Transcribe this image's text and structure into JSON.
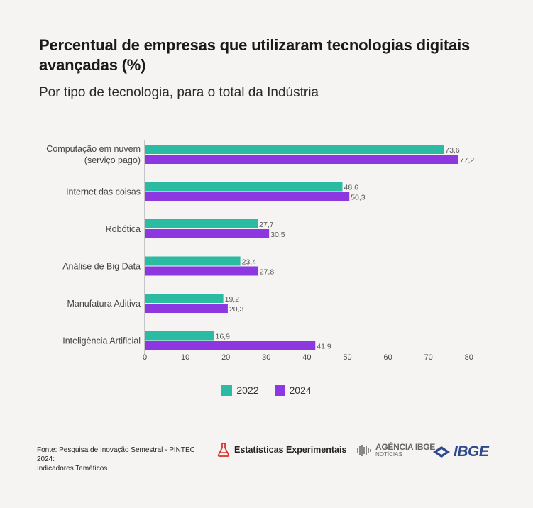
{
  "title": "Percentual de empresas que utilizaram tecnologias digitais avançadas (%)",
  "subtitle": "Por tipo de tecnologia, para o total da Indústria",
  "colors": {
    "s2022": "#2bbba2",
    "s2024": "#8c37e0"
  },
  "chart_data": {
    "type": "bar",
    "orientation": "horizontal",
    "categories": [
      [
        "Computação em nuvem",
        "(serviço pago)"
      ],
      [
        "Internet das coisas"
      ],
      [
        "Robótica"
      ],
      [
        "Análise de Big Data"
      ],
      [
        "Manufatura Aditiva"
      ],
      [
        "Inteligência Artificial"
      ]
    ],
    "series": [
      {
        "name": "2022",
        "values": [
          73.6,
          48.6,
          27.7,
          23.4,
          19.2,
          16.9
        ],
        "labels": [
          "73,6",
          "48,6",
          "27,7",
          "23,4",
          "19,2",
          "16,9"
        ]
      },
      {
        "name": "2024",
        "values": [
          77.2,
          50.3,
          30.5,
          27.8,
          20.3,
          41.9
        ],
        "labels": [
          "77,2",
          "50,3",
          "30,5",
          "27,8",
          "20,3",
          "41,9"
        ]
      }
    ],
    "xlim": [
      0,
      80
    ],
    "xticks": [
      "0",
      "10",
      "20",
      "30",
      "40",
      "50",
      "60",
      "70",
      "80"
    ],
    "grid": false,
    "legend_position": "bottom"
  },
  "legend": {
    "s2022": "2022",
    "s2024": "2024"
  },
  "footer": {
    "source_line1": "Fonte: Pesquisa de Inovação Semestral - PINTEC 2024:",
    "source_line2": "Indicadores Temáticos",
    "ee_label": "Estatísticas Experimentais",
    "agencia_line1": "AGÊNCIA IBGE",
    "agencia_line2": "NOTÍCIAS",
    "ibge_label": "IBGE"
  }
}
